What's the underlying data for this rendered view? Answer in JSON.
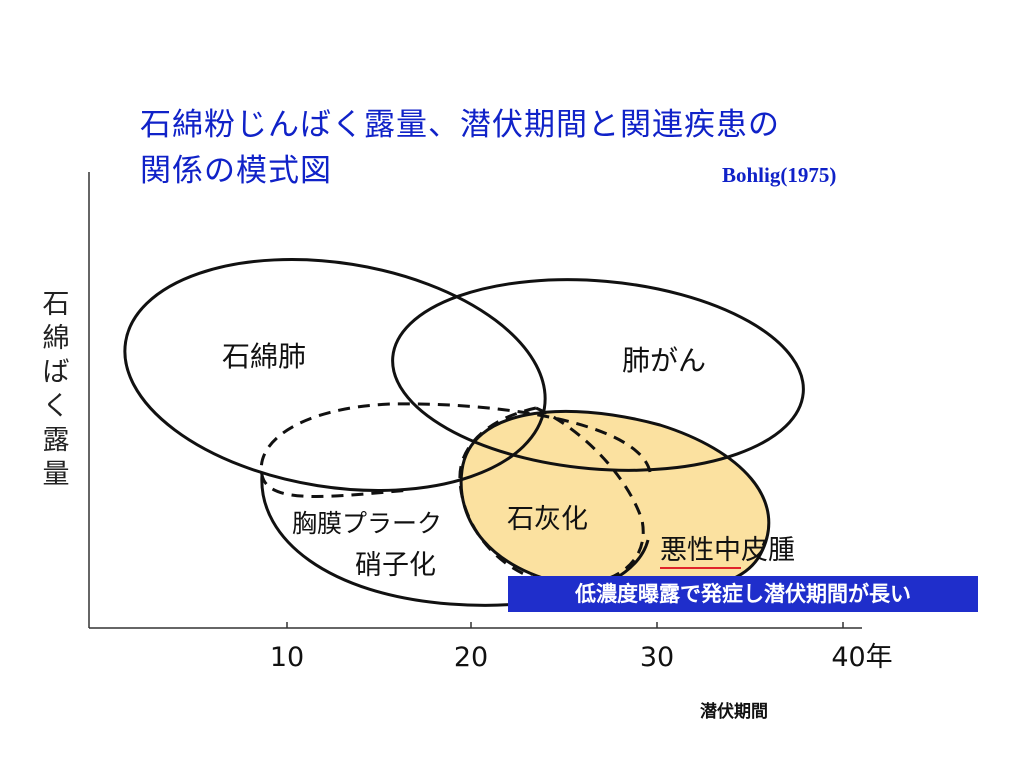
{
  "title": {
    "line1": "石綿粉じんばく露量、潜伏期間と関連疾患の",
    "line2": "関係の模式図"
  },
  "citation": "Bohlig(1975)",
  "y_axis_label": "石綿ばく露量",
  "x_axis": {
    "title": "潜伏期間",
    "ticks": [
      "10",
      "20",
      "30",
      "40年"
    ]
  },
  "regions": {
    "asbestosis": "石綿肺",
    "lung_cancer": "肺がん",
    "pleural_plaque": "胸膜プラーク",
    "hyalinization": "硝子化",
    "calcification": "石灰化",
    "mesothelioma_a": "悪性中",
    "mesothelioma_b": "皮腫"
  },
  "callout": "低濃度曝露で発症し潜伏期間が長い",
  "colors": {
    "title": "#1022c8",
    "highlight_fill": "#fbe1a0",
    "callout_bg": "#1f2ecb",
    "underline": "#e0242a"
  }
}
